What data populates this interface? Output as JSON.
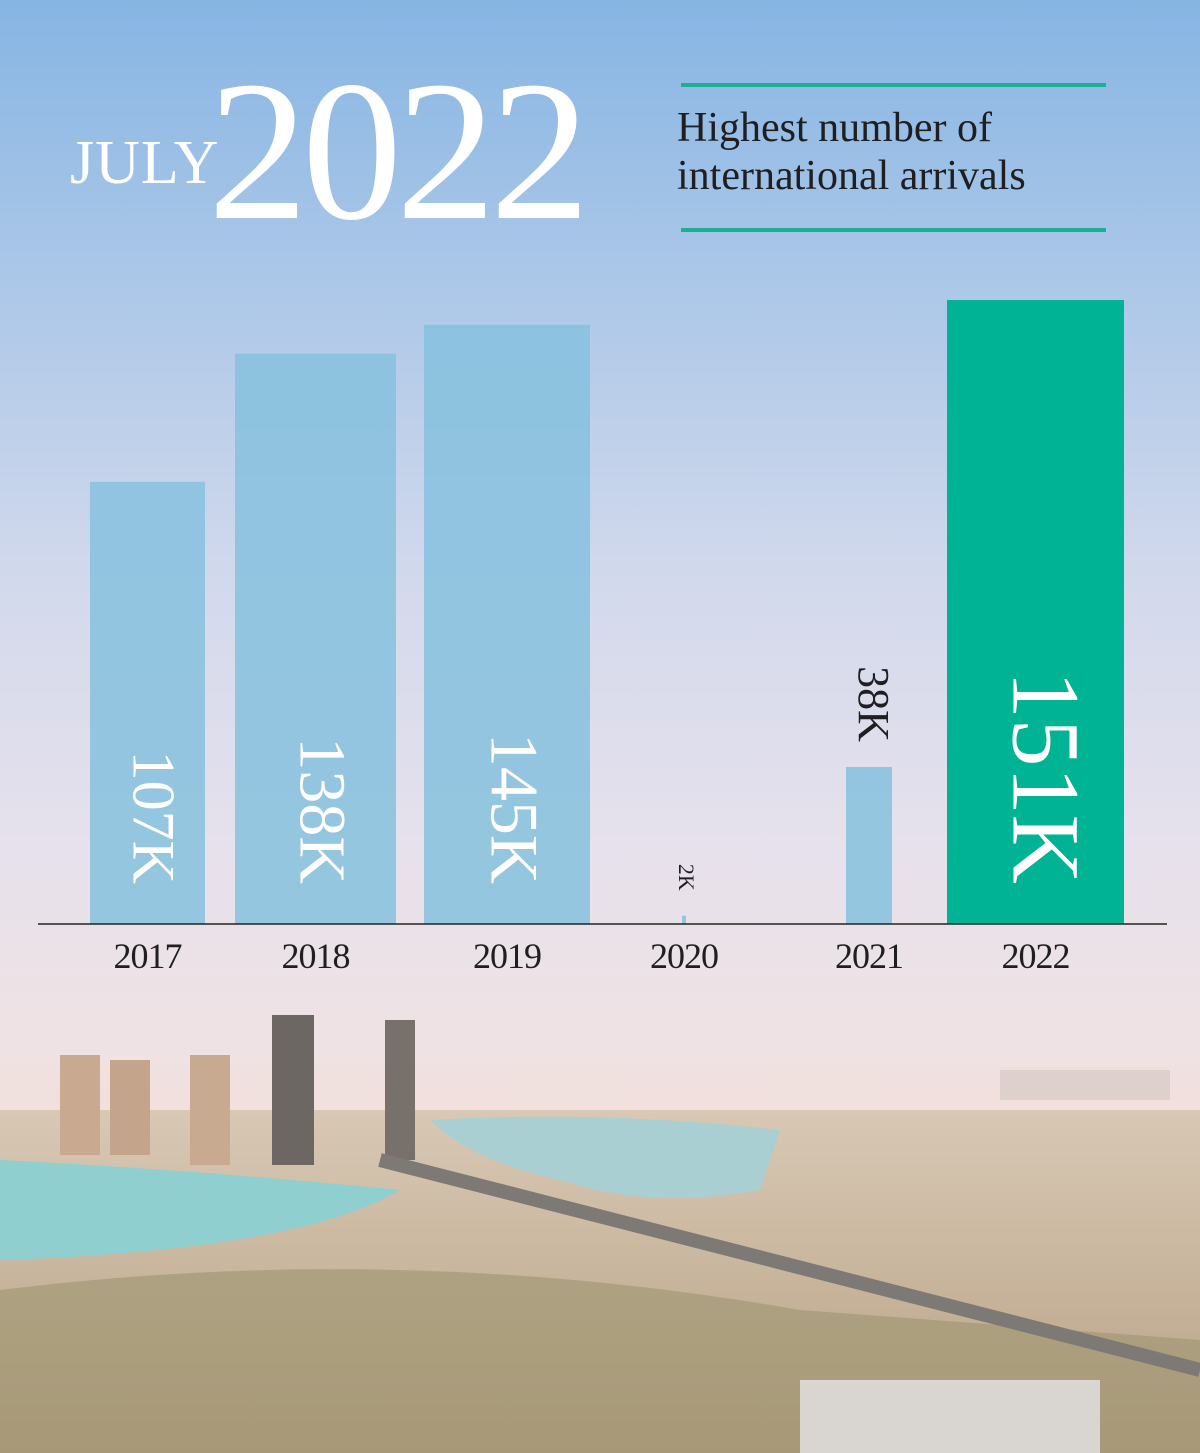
{
  "header": {
    "month": "JULY",
    "year": "2022",
    "subtitle_line1": "Highest number of",
    "subtitle_line2": "international arrivals"
  },
  "colors": {
    "bar": "#86c1de",
    "highlight": "#00b394",
    "accent": "#1fae94",
    "axis": "#222222"
  },
  "chart_data": {
    "type": "bar",
    "title": "Highest number of international arrivals",
    "categories": [
      "2017",
      "2018",
      "2019",
      "2020",
      "2021",
      "2022"
    ],
    "values": [
      107,
      138,
      145,
      2,
      38,
      151
    ],
    "labels": [
      "107K",
      "138K",
      "145K",
      "2K",
      "38K",
      "151K"
    ],
    "unit": "thousand arrivals",
    "highlight": "2022",
    "ylim": [
      0,
      151
    ],
    "grid": false
  }
}
